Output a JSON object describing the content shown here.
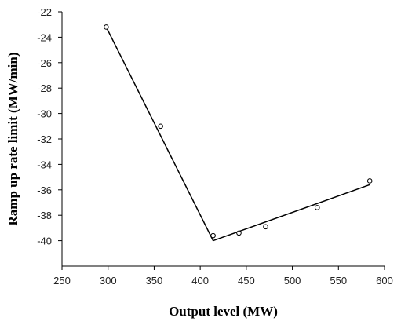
{
  "chart_data": {
    "type": "scatter",
    "xlabel": "Output level (MW)",
    "ylabel": "Ramp up rate limit (MW/min)",
    "xlim": [
      250,
      600
    ],
    "ylim": [
      -42,
      -22
    ],
    "xticks": [
      250,
      300,
      350,
      400,
      450,
      500,
      550,
      600
    ],
    "yticks": [
      -22,
      -24,
      -26,
      -28,
      -30,
      -32,
      -34,
      -36,
      -38,
      -40
    ],
    "grid": false,
    "series": [
      {
        "kind": "points",
        "marker": "open-circle",
        "x": [
          298,
          357,
          414,
          442,
          471,
          527,
          584
        ],
        "y": [
          -23.2,
          -31.0,
          -39.6,
          -39.4,
          -38.9,
          -37.4,
          -35.3
        ]
      },
      {
        "kind": "fit-line",
        "segment": 1,
        "x": [
          298,
          414
        ],
        "y": [
          -23.2,
          -40.0
        ]
      },
      {
        "kind": "fit-line",
        "segment": 2,
        "x": [
          414,
          584
        ],
        "y": [
          -40.0,
          -35.6
        ]
      }
    ]
  }
}
